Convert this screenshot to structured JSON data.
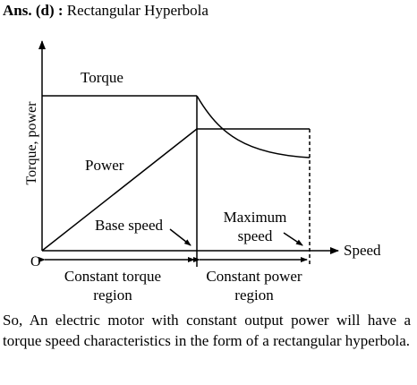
{
  "answer": {
    "prefix": "Ans. (d) :",
    "text": "Rectangular Hyperbola"
  },
  "diagram": {
    "y_axis_label": "Torque, power",
    "x_axis_label": "Speed",
    "origin_label": "O",
    "torque_label": "Torque",
    "power_label": "Power",
    "base_speed_label": "Base speed",
    "max_speed_line1": "Maximum",
    "max_speed_line2": "speed",
    "region1_line1": "Constant torque",
    "region1_line2": "region",
    "region2_line1": "Constant power",
    "region2_line2": "region"
  },
  "paragraph": "So, An electric motor with constant output power will have a torque speed characteristics in the form of a rectangular hyperbola."
}
